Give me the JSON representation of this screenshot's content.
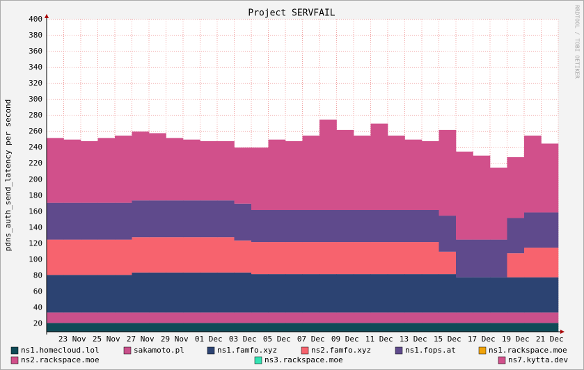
{
  "chart_data": {
    "type": "stacked_bar",
    "title": "Project SERVFAIL",
    "y_label": "pdns_auth_send_latency per second",
    "watermark": "RRDTOOL / TOBI OETIKER",
    "categories": [
      null,
      "23 Nov",
      null,
      "25 Nov",
      null,
      "27 Nov",
      null,
      "29 Nov",
      null,
      "01 Dec",
      null,
      "03 Dec",
      null,
      "05 Dec",
      null,
      "07 Dec",
      null,
      "09 Dec",
      null,
      "11 Dec",
      null,
      "13 Dec",
      null,
      "15 Dec",
      null,
      "17 Dec",
      null,
      "19 Dec",
      null,
      "21 Dec"
    ],
    "ylim": [
      10,
      400
    ],
    "yticks": [
      20,
      40,
      60,
      80,
      100,
      120,
      140,
      160,
      180,
      200,
      220,
      240,
      260,
      280,
      300,
      320,
      340,
      360,
      380,
      400
    ],
    "grid": true,
    "series": [
      {
        "name": "ns1.homecloud.lol",
        "color": "#0f4a57",
        "values": [
          21,
          21,
          21,
          21,
          21,
          21,
          21,
          21,
          21,
          21,
          21,
          21,
          21,
          21,
          21,
          21,
          21,
          21,
          21,
          21,
          21,
          21,
          21,
          21,
          21,
          21,
          21,
          21,
          21,
          21
        ]
      },
      {
        "name": "sakamoto.pl",
        "color": "#c9508b",
        "values": [
          13,
          13,
          13,
          13,
          13,
          13,
          13,
          13,
          13,
          13,
          13,
          13,
          13,
          13,
          13,
          13,
          13,
          13,
          13,
          13,
          13,
          13,
          13,
          13,
          13,
          13,
          13,
          13,
          13,
          13
        ]
      },
      {
        "name": "ns1.famfo.xyz",
        "color": "#2c4372",
        "values": [
          47,
          47,
          47,
          47,
          47,
          50,
          50,
          50,
          50,
          50,
          50,
          50,
          48,
          48,
          48,
          48,
          48,
          48,
          48,
          48,
          48,
          48,
          48,
          48,
          44,
          44,
          44,
          44,
          44,
          44
        ]
      },
      {
        "name": "ns2.famfo.xyz",
        "color": "#f7636e",
        "values": [
          44,
          44,
          44,
          44,
          44,
          44,
          44,
          44,
          44,
          44,
          44,
          40,
          40,
          40,
          40,
          40,
          40,
          40,
          40,
          40,
          40,
          40,
          40,
          28,
          0,
          0,
          0,
          30,
          37,
          37
        ]
      },
      {
        "name": "ns1.fops.at",
        "color": "#5f4a8c",
        "values": [
          46,
          46,
          46,
          46,
          46,
          46,
          46,
          46,
          46,
          46,
          46,
          46,
          40,
          40,
          40,
          40,
          40,
          40,
          40,
          40,
          40,
          40,
          40,
          45,
          47,
          47,
          47,
          44,
          44,
          44
        ]
      },
      {
        "name": "ns1.rackspace.moe",
        "color": "#f0a30a",
        "values": [
          0,
          0,
          0,
          0,
          0,
          0,
          0,
          0,
          0,
          0,
          0,
          0,
          0,
          0,
          0,
          0,
          0,
          0,
          0,
          0,
          0,
          0,
          0,
          0,
          0,
          0,
          0,
          0,
          0,
          0
        ]
      },
      {
        "name": "ns2.rackspace.moe",
        "color": "#d14f8a",
        "values": [
          0,
          0,
          0,
          0,
          0,
          0,
          0,
          0,
          0,
          0,
          0,
          0,
          0,
          0,
          0,
          0,
          0,
          0,
          0,
          0,
          0,
          0,
          0,
          0,
          0,
          0,
          0,
          0,
          0,
          0
        ]
      },
      {
        "name": "ns3.rackspace.moe",
        "color": "#33e3b3",
        "values": [
          0,
          0,
          0,
          0,
          0,
          0,
          0,
          0,
          0,
          0,
          0,
          0,
          0,
          0,
          0,
          0,
          0,
          0,
          0,
          0,
          0,
          0,
          0,
          0,
          0,
          0,
          0,
          0,
          0,
          0
        ]
      },
      {
        "name": "ns7.kytta.dev",
        "color": "#d1508b",
        "values": [
          81,
          79,
          77,
          81,
          84,
          86,
          84,
          78,
          76,
          74,
          74,
          70,
          78,
          88,
          86,
          93,
          113,
          100,
          93,
          108,
          93,
          88,
          86,
          107,
          110,
          105,
          90,
          76,
          96,
          86
        ]
      }
    ]
  }
}
